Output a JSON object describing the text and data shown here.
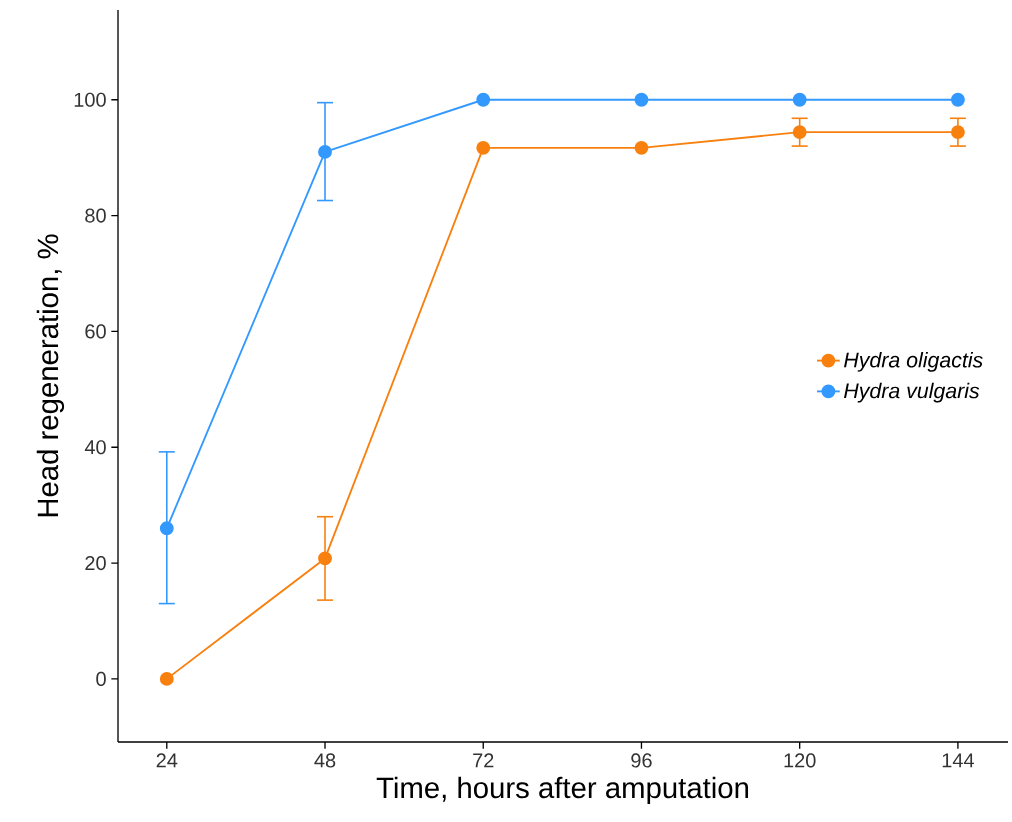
{
  "chart_data": {
    "type": "line",
    "xlabel": "Time, hours after amputation",
    "ylabel": "Head regeneration, %",
    "x": [
      24,
      48,
      72,
      96,
      120,
      144
    ],
    "series": [
      {
        "name": "Hydra oligactis",
        "color": "#f8800f",
        "values": [
          0,
          20.8,
          91.7,
          91.7,
          94.4,
          94.4
        ],
        "errors": [
          null,
          [
            13.6,
            28
          ],
          null,
          null,
          [
            92,
            96.8
          ],
          [
            92,
            96.8
          ]
        ]
      },
      {
        "name": "Hydra vulgaris",
        "color": "#3399ff",
        "values": [
          26,
          91,
          100,
          100,
          100,
          100
        ],
        "errors": [
          [
            13,
            39.2
          ],
          [
            82.6,
            99.5
          ],
          null,
          null,
          null,
          null
        ]
      }
    ],
    "xlim": [
      16.6,
      151.6
    ],
    "ylim": [
      -10.9,
      115.5
    ],
    "xticks": [
      24,
      48,
      72,
      96,
      120,
      144
    ],
    "yticks": [
      0,
      20,
      40,
      60,
      80,
      100
    ],
    "grid": false,
    "legend": "right",
    "marker": "circle",
    "line_style": "solid"
  }
}
